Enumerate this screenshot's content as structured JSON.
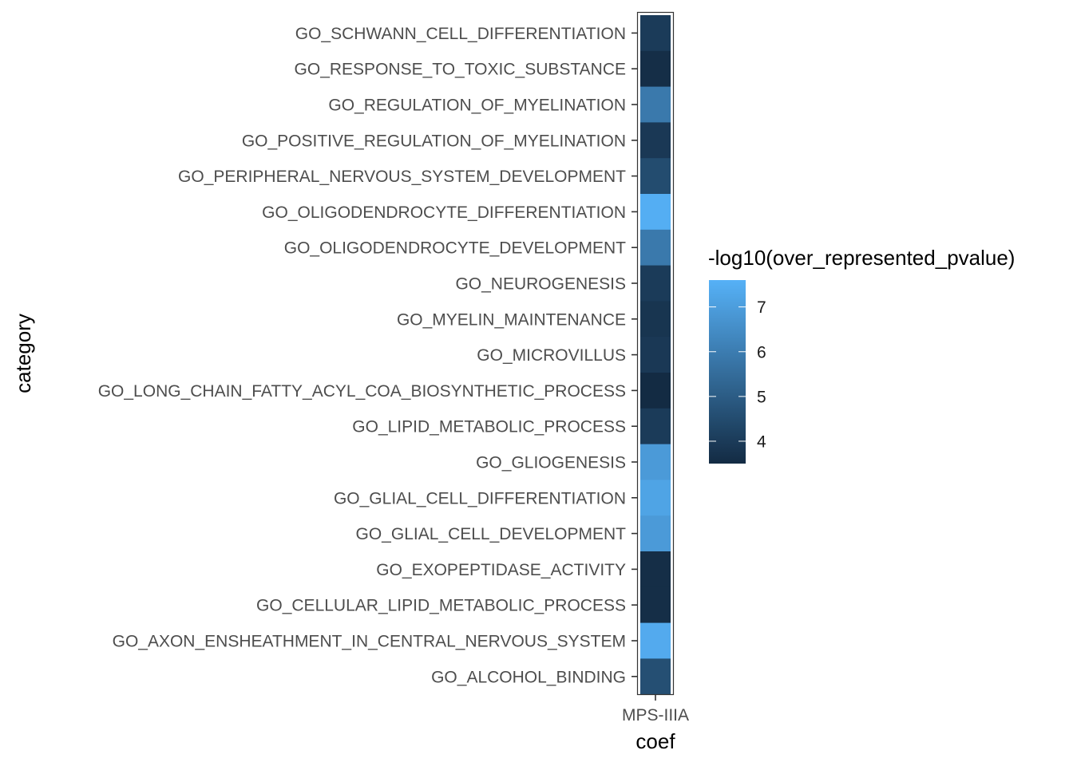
{
  "chart_data": {
    "type": "heatmap",
    "xlabel": "coef",
    "ylabel": "category",
    "x_categories": [
      "MPS-IIIA"
    ],
    "y_categories": [
      "GO_SCHWANN_CELL_DIFFERENTIATION",
      "GO_RESPONSE_TO_TOXIC_SUBSTANCE",
      "GO_REGULATION_OF_MYELINATION",
      "GO_POSITIVE_REGULATION_OF_MYELINATION",
      "GO_PERIPHERAL_NERVOUS_SYSTEM_DEVELOPMENT",
      "GO_OLIGODENDROCYTE_DIFFERENTIATION",
      "GO_OLIGODENDROCYTE_DEVELOPMENT",
      "GO_NEUROGENESIS",
      "GO_MYELIN_MAINTENANCE",
      "GO_MICROVILLUS",
      "GO_LONG_CHAIN_FATTY_ACYL_COA_BIOSYNTHETIC_PROCESS",
      "GO_LIPID_METABOLIC_PROCESS",
      "GO_GLIOGENESIS",
      "GO_GLIAL_CELL_DIFFERENTIATION",
      "GO_GLIAL_CELL_DEVELOPMENT",
      "GO_EXOPEPTIDASE_ACTIVITY",
      "GO_CELLULAR_LIPID_METABOLIC_PROCESS",
      "GO_AXON_ENSHEATHMENT_IN_CENTRAL_NERVOUS_SYSTEM",
      "GO_ALCOHOL_BINDING"
    ],
    "values": [
      4.0,
      3.6,
      5.9,
      3.9,
      4.5,
      7.5,
      5.9,
      4.0,
      3.8,
      3.9,
      3.5,
      4.0,
      6.9,
      7.2,
      6.9,
      3.6,
      3.6,
      7.4,
      4.6
    ],
    "legend": {
      "title": "-log10(over_represented_pvalue)",
      "placement": "right",
      "ticks": [
        4,
        5,
        6,
        7
      ],
      "tick_labels": [
        "4",
        "5",
        "6",
        "7"
      ],
      "range": [
        3.5,
        7.6
      ],
      "low_color": "#132B43",
      "high_color": "#56B1F7"
    },
    "grid": false
  }
}
